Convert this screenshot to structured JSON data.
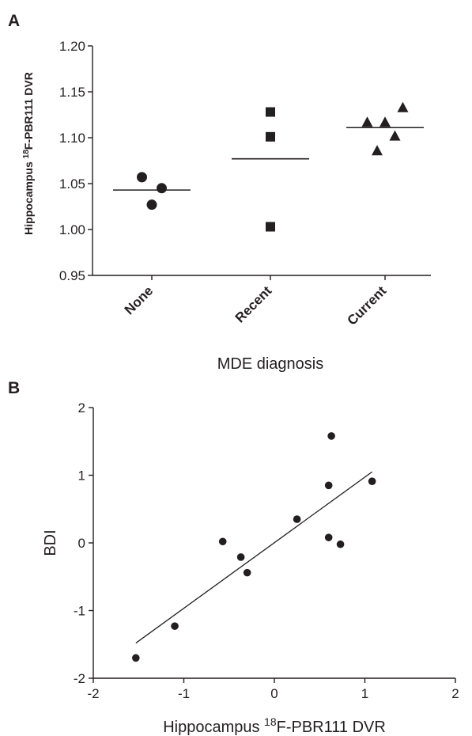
{
  "chart_data": [
    {
      "panel": "A",
      "type": "scatter",
      "title": "",
      "xlabel": "MDE diagnosis",
      "ylabel_prefix": "Hippocampus ",
      "ylabel_sup": "18",
      "ylabel_suffix": "F-PBR111 DVR",
      "categories": [
        "None",
        "Recent",
        "Current"
      ],
      "ylim": [
        0.95,
        1.2
      ],
      "yticks": [
        "0.95",
        "1.00",
        "1.05",
        "1.10",
        "1.15",
        "1.20"
      ],
      "grid": false,
      "series": [
        {
          "category": "None",
          "marker": "circle",
          "mean": 1.043,
          "points": [
            {
              "offset": -0.25,
              "y": 1.057
            },
            {
              "offset": 0.25,
              "y": 1.045
            },
            {
              "offset": 0.0,
              "y": 1.027
            }
          ]
        },
        {
          "category": "Recent",
          "marker": "square",
          "mean": 1.077,
          "points": [
            {
              "offset": 0.0,
              "y": 1.128
            },
            {
              "offset": 0.0,
              "y": 1.101
            },
            {
              "offset": 0.0,
              "y": 1.003
            }
          ]
        },
        {
          "category": "Current",
          "marker": "triangle",
          "mean": 1.111,
          "points": [
            {
              "offset": -0.45,
              "y": 1.117
            },
            {
              "offset": 0.0,
              "y": 1.117
            },
            {
              "offset": 0.45,
              "y": 1.133
            },
            {
              "offset": -0.2,
              "y": 1.086
            },
            {
              "offset": 0.25,
              "y": 1.102
            }
          ]
        }
      ]
    },
    {
      "panel": "B",
      "type": "scatter",
      "title": "",
      "xlabel_prefix": "Hippocampus ",
      "xlabel_sup": "18",
      "xlabel_suffix": "F-PBR111 DVR",
      "ylabel": "BDI",
      "xlim": [
        -2,
        2
      ],
      "ylim": [
        -2,
        2
      ],
      "xticks": [
        "-2",
        "-1",
        "0",
        "1",
        "2"
      ],
      "yticks": [
        "-2",
        "-1",
        "0",
        "1",
        "2"
      ],
      "grid": false,
      "points": [
        {
          "x": -1.53,
          "y": -1.7
        },
        {
          "x": -1.1,
          "y": -1.23
        },
        {
          "x": -0.57,
          "y": 0.02
        },
        {
          "x": -0.37,
          "y": -0.21
        },
        {
          "x": -0.3,
          "y": -0.44
        },
        {
          "x": 0.25,
          "y": 0.35
        },
        {
          "x": 0.6,
          "y": 0.85
        },
        {
          "x": 0.63,
          "y": 1.58
        },
        {
          "x": 0.6,
          "y": 0.08
        },
        {
          "x": 0.73,
          "y": -0.02
        },
        {
          "x": 1.08,
          "y": 0.91
        }
      ],
      "fit_line": {
        "x": [
          -1.53,
          1.08
        ],
        "y": [
          -1.48,
          1.05
        ]
      }
    }
  ]
}
